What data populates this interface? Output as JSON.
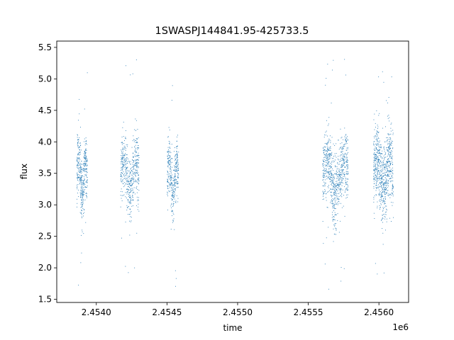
{
  "chart_data": {
    "type": "scatter",
    "title": "1SWASPJ144841.95-425733.5",
    "xlabel": "time",
    "ylabel": "flux",
    "x_offset_label": "1e6",
    "xlim": [
      2453720,
      2456210
    ],
    "ylim": [
      1.45,
      5.6
    ],
    "x_ticks": [
      2.454,
      2.4545,
      2.455,
      2.4555,
      2.456
    ],
    "x_tick_labels": [
      "2.4540",
      "2.4545",
      "2.4550",
      "2.4555",
      "2.4560"
    ],
    "y_ticks": [
      1.5,
      2.0,
      2.5,
      3.0,
      3.5,
      4.0,
      4.5,
      5.0,
      5.5
    ],
    "y_tick_labels": [
      "1.5",
      "2.0",
      "2.5",
      "3.0",
      "3.5",
      "4.0",
      "4.5",
      "5.0",
      "5.5"
    ],
    "grid": false,
    "marker_color": "#1f77b4",
    "clusters": [
      {
        "x_start": 2453860,
        "x_end": 2453935,
        "center": 3.45,
        "spread": 0.35,
        "min": 1.6,
        "max": 5.25,
        "points": 420
      },
      {
        "x_start": 2454170,
        "x_end": 2454300,
        "center": 3.45,
        "spread": 0.38,
        "min": 1.7,
        "max": 5.4,
        "points": 520
      },
      {
        "x_start": 2454500,
        "x_end": 2454580,
        "center": 3.42,
        "spread": 0.3,
        "min": 1.7,
        "max": 5.25,
        "points": 380
      },
      {
        "x_start": 2455600,
        "x_end": 2455780,
        "center": 3.45,
        "spread": 0.4,
        "min": 1.6,
        "max": 5.4,
        "points": 780
      },
      {
        "x_start": 2455960,
        "x_end": 2456100,
        "center": 3.5,
        "spread": 0.45,
        "min": 1.65,
        "max": 5.35,
        "points": 760
      }
    ]
  }
}
